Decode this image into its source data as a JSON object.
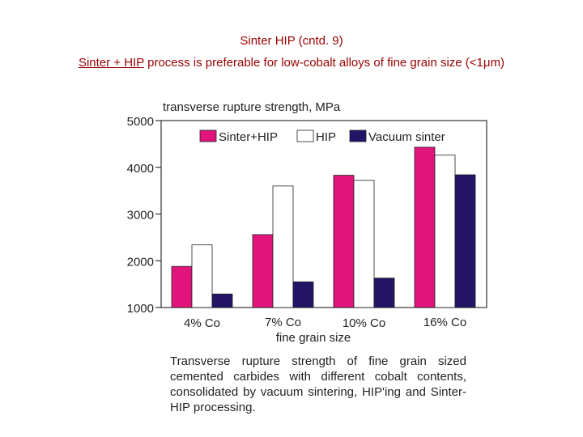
{
  "slide": {
    "title_line1": "Sinter HIP (cntd. 9)",
    "title_line2_underlined": "Sinter + HIP",
    "title_line2_rest": " process is preferable for low-cobalt alloys of fine grain size (<1",
    "title_line2_mu": "μ",
    "title_line2_end": "m)",
    "caption": "Transverse rupture strength of fine grain sized cemented carbides with different cobalt contents, consolidated by vacuum sintering, HIP'ing and Sinter-HIP processing."
  },
  "colors": {
    "title": "#990000",
    "sinter_hip": "#e0147a",
    "hip": "#ffffff",
    "vacuum_sinter": "#231466"
  },
  "chart_data": {
    "type": "bar",
    "ylabel": "transverse rupture strength, MPa",
    "xlabel": "fine grain size",
    "categories": [
      "4% Co",
      "7% Co",
      "10% Co",
      "16% Co"
    ],
    "ylim": [
      1000,
      5000
    ],
    "yticks": [
      1000,
      2000,
      3000,
      4000,
      5000
    ],
    "grid": false,
    "legend_position": "top",
    "series": [
      {
        "name": "Sinter+HIP",
        "values": [
          1880,
          2560,
          3830,
          4430
        ],
        "color": "#e0147a"
      },
      {
        "name": "HIP",
        "values": [
          2340,
          3600,
          3720,
          4260
        ],
        "color": "#ffffff"
      },
      {
        "name": "Vacuum sinter",
        "values": [
          1290,
          1550,
          1630,
          3840
        ],
        "color": "#231466"
      }
    ]
  }
}
